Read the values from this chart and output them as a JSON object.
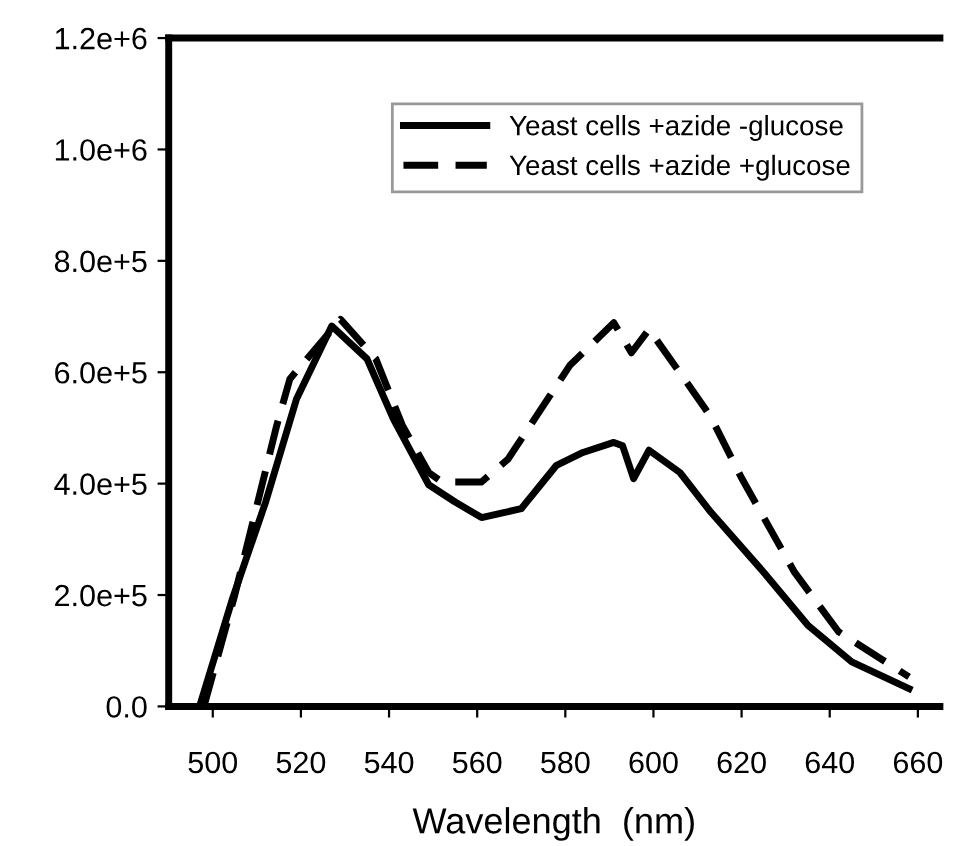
{
  "chart_data": {
    "type": "line",
    "xlabel": "Wavelength  (nm)",
    "xlim": [
      490,
      665
    ],
    "xticks": [
      500,
      520,
      540,
      560,
      580,
      600,
      620,
      640,
      660
    ],
    "ylim": [
      0,
      1200000
    ],
    "yticks": [
      {
        "value": 0,
        "label": "0.0"
      },
      {
        "value": 200000,
        "label": "2.0e+5"
      },
      {
        "value": 400000,
        "label": "4.0e+5"
      },
      {
        "value": 600000,
        "label": "6.0e+5"
      },
      {
        "value": 800000,
        "label": "8.0e+5"
      },
      {
        "value": 1000000,
        "label": "1.0e+6"
      },
      {
        "value": 1200000,
        "label": "1.2e+6"
      }
    ],
    "grid": false,
    "legend": "top right",
    "marker": "none",
    "series": [
      {
        "name": "Yeast cells +azide -glucose",
        "color": "#000000",
        "line_style": "solid",
        "x": [
          497,
          504.5,
          512,
          519,
          527,
          535,
          541,
          549,
          555,
          561,
          570,
          578,
          584,
          591,
          593,
          595.5,
          599,
          606,
          613,
          625,
          635,
          645,
          658
        ],
        "values": [
          0,
          194000,
          367000,
          552000,
          683000,
          624000,
          516000,
          398000,
          367000,
          339000,
          355000,
          433000,
          456000,
          474000,
          468000,
          409000,
          460000,
          420000,
          349000,
          241000,
          146000,
          80000,
          32000
        ]
      },
      {
        "name": "Yeast cells +azide +glucose",
        "color": "#000000",
        "line_style": "dashed",
        "x": [
          498,
          505,
          514.5,
          517.5,
          529,
          537,
          543,
          549,
          552,
          561,
          567,
          574,
          581,
          591,
          595,
          599,
          607,
          613,
          620,
          632,
          642,
          658
        ],
        "values": [
          0,
          200000,
          504000,
          588000,
          695000,
          624000,
          505000,
          420000,
          403000,
          403000,
          444000,
          528000,
          612000,
          689000,
          635000,
          677000,
          588000,
          520000,
          410000,
          241000,
          134000,
          53000
        ]
      }
    ]
  }
}
